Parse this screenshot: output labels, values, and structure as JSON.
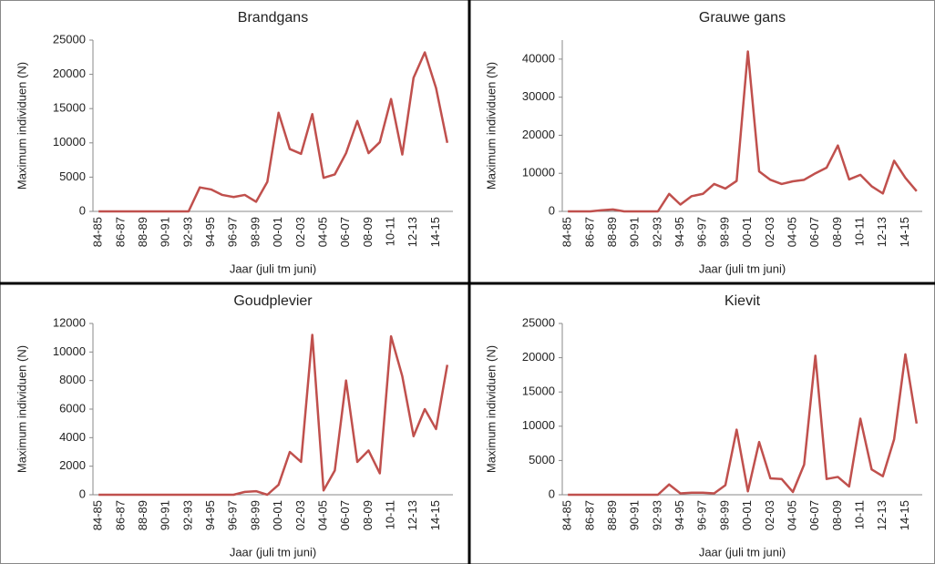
{
  "chart_data": [
    {
      "type": "line",
      "title": "Brandgans",
      "y_label": "Maximum individuen (N)",
      "x_label": "Jaar (juli tm juni)",
      "categories": [
        "84-85",
        null,
        "86-87",
        null,
        "88-89",
        null,
        "90-91",
        null,
        "92-93",
        null,
        "94-95",
        null,
        "96-97",
        null,
        "98-99",
        null,
        "00-01",
        null,
        "02-03",
        null,
        "04-05",
        null,
        "06-07",
        null,
        "08-09",
        null,
        "10-11",
        null,
        "12-13",
        null,
        "14-15",
        null
      ],
      "values": [
        0,
        0,
        0,
        0,
        0,
        0,
        0,
        0,
        0,
        3500,
        3200,
        2400,
        2100,
        2400,
        1400,
        4300,
        14400,
        9100,
        8400,
        14200,
        4900,
        5400,
        8500,
        13200,
        8500,
        10100,
        16400,
        8300,
        19500,
        23200,
        18000,
        10000
      ],
      "color": "#c0504d",
      "ylim": [
        0,
        25000
      ],
      "yticks": [
        0,
        5000,
        10000,
        15000,
        20000,
        25000
      ]
    },
    {
      "type": "line",
      "title": "Grauwe gans",
      "y_label": "Maximum individuen (N)",
      "x_label": "Jaar (juli tm juni)",
      "categories": [
        "84-85",
        null,
        "86-87",
        null,
        "88-89",
        null,
        "90-91",
        null,
        "92-93",
        null,
        "94-95",
        null,
        "96-97",
        null,
        "98-99",
        null,
        "00-01",
        null,
        "02-03",
        null,
        "04-05",
        null,
        "06-07",
        null,
        "08-09",
        null,
        "10-11",
        null,
        "12-13",
        null,
        "14-15",
        null
      ],
      "values": [
        0,
        0,
        0,
        300,
        500,
        0,
        0,
        0,
        0,
        4600,
        1800,
        4000,
        4600,
        7200,
        6000,
        8000,
        42000,
        10500,
        8300,
        7200,
        7900,
        8300,
        10000,
        11500,
        17300,
        8400,
        9600,
        6600,
        4700,
        13300,
        8800,
        5300
      ],
      "color": "#c0504d",
      "ylim": [
        0,
        45000
      ],
      "yticks": [
        0,
        10000,
        20000,
        30000,
        40000
      ]
    },
    {
      "type": "line",
      "title": "Goudplevier",
      "y_label": "Maximum individuen (N)",
      "x_label": "Jaar (juli tm juni)",
      "categories": [
        "84-85",
        null,
        "86-87",
        null,
        "88-89",
        null,
        "90-91",
        null,
        "92-93",
        null,
        "94-95",
        null,
        "96-97",
        null,
        "98-99",
        null,
        "00-01",
        null,
        "02-03",
        null,
        "04-05",
        null,
        "06-07",
        null,
        "08-09",
        null,
        "10-11",
        null,
        "12-13",
        null,
        "14-15",
        null
      ],
      "values": [
        0,
        0,
        0,
        0,
        0,
        0,
        0,
        0,
        0,
        0,
        0,
        0,
        0,
        200,
        250,
        0,
        700,
        3000,
        2300,
        11200,
        300,
        1700,
        8000,
        2300,
        3100,
        1500,
        11100,
        8300,
        4100,
        6000,
        4600,
        9100
      ],
      "color": "#c0504d",
      "ylim": [
        0,
        12000
      ],
      "yticks": [
        0,
        2000,
        4000,
        6000,
        8000,
        10000,
        12000
      ]
    },
    {
      "type": "line",
      "title": "Kievit",
      "y_label": "Maximum individuen (N)",
      "x_label": "Jaar (juli tm juni)",
      "categories": [
        "84-85",
        null,
        "86-87",
        null,
        "88-89",
        null,
        "90-91",
        null,
        "92-93",
        null,
        "94-95",
        null,
        "96-97",
        null,
        "98-99",
        null,
        "00-01",
        null,
        "02-03",
        null,
        "04-05",
        null,
        "06-07",
        null,
        "08-09",
        null,
        "10-11",
        null,
        "12-13",
        null,
        "14-15",
        null
      ],
      "values": [
        0,
        0,
        0,
        0,
        0,
        0,
        0,
        0,
        0,
        1500,
        200,
        300,
        300,
        200,
        1400,
        9500,
        500,
        7700,
        2400,
        2300,
        400,
        4400,
        20300,
        2300,
        2600,
        1200,
        11100,
        3700,
        2700,
        8100,
        20500,
        10400
      ],
      "color": "#c0504d",
      "ylim": [
        0,
        25000
      ],
      "yticks": [
        0,
        5000,
        10000,
        15000,
        20000,
        25000
      ]
    }
  ]
}
